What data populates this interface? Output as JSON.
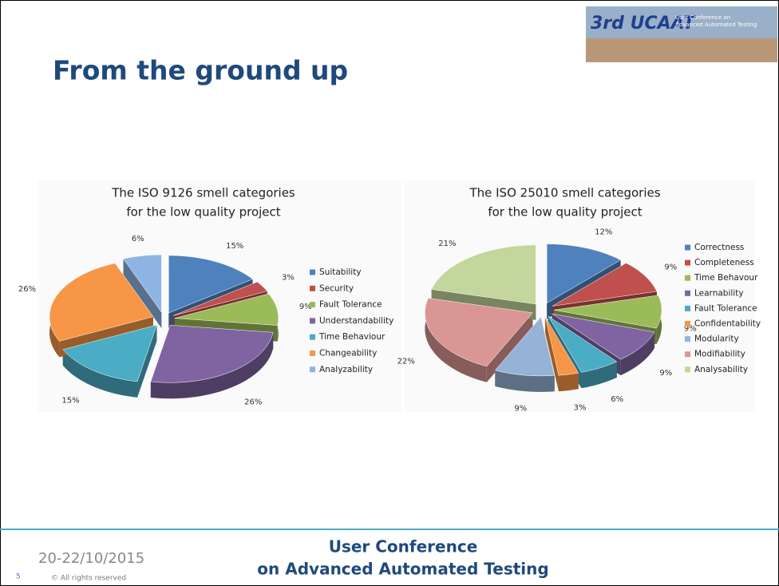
{
  "slide": {
    "title": "From the ground up",
    "logo": {
      "mark": "3rd UCAAT",
      "line1": "User Conference on",
      "line2": "Advanced Automated Testing"
    },
    "footer": {
      "date": "20-22/10/2015",
      "page": "5",
      "rights": "© All rights reserved",
      "line1": "User Conference",
      "line2": "on Advanced Automated Testing"
    }
  },
  "chart_data": [
    {
      "type": "pie",
      "title": [
        "The ISO 9126 smell categories",
        "for the low quality project"
      ],
      "categories": [
        "Suitability",
        "Security",
        "Fault Tolerance",
        "Understandability",
        "Time Behaviour",
        "Changeability",
        "Analyzability"
      ],
      "values": [
        15,
        3,
        9,
        26,
        15,
        26,
        6
      ],
      "value_labels": [
        "15%",
        "3%",
        "9%",
        "26%",
        "15%",
        "26%",
        "6%"
      ],
      "colors": [
        "#4f81bd",
        "#c0504d",
        "#9bbb59",
        "#8064a2",
        "#4bacc6",
        "#f79646",
        "#8eb4e3"
      ],
      "legend": "right"
    },
    {
      "type": "pie",
      "title": [
        "The ISO 25010 smell categories",
        "for the low quality project"
      ],
      "categories": [
        "Correctness",
        "Completeness",
        "Time Behavour",
        "Learnability",
        "Fault Tolerance",
        "Confidentability",
        "Modularity",
        "Modifiability",
        "Analysability"
      ],
      "values": [
        12,
        9,
        9,
        9,
        6,
        3,
        9,
        22,
        21
      ],
      "value_labels": [
        "12%",
        "9%",
        "9%",
        "9%",
        "6%",
        "3%",
        "9%",
        "22%",
        "21%"
      ],
      "colors": [
        "#4f81bd",
        "#c0504d",
        "#9bbb59",
        "#8064a2",
        "#4bacc6",
        "#f79646",
        "#95b3d7",
        "#d99694",
        "#c3d69b"
      ],
      "legend": "right"
    }
  ]
}
